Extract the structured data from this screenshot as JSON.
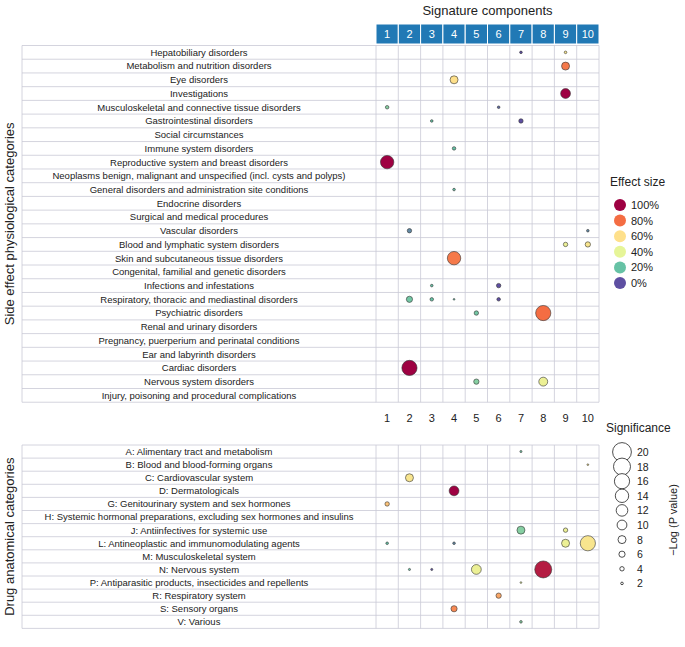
{
  "chart_data": {
    "type": "bubble_matrix",
    "title": "Signature components",
    "columns": [
      1,
      2,
      3,
      4,
      5,
      6,
      7,
      8,
      9,
      10
    ],
    "panels": [
      {
        "y_label": "Side effect physiological categories",
        "rows": [
          {
            "label": "Hepatobiliary disorders",
            "points": [
              {
                "component": 7,
                "effect": 0,
                "significance": 2
              },
              {
                "component": 9,
                "effect": 55,
                "significance": 2
              }
            ]
          },
          {
            "label": "Metabolism and nutrition disorders",
            "points": [
              {
                "component": 9,
                "effect": 78,
                "significance": 8
              }
            ]
          },
          {
            "label": "Eye disorders",
            "points": [
              {
                "component": 4,
                "effect": 60,
                "significance": 8
              }
            ]
          },
          {
            "label": "Investigations",
            "points": [
              {
                "component": 9,
                "effect": 100,
                "significance": 10
              }
            ]
          },
          {
            "label": "Musculoskeletal and connective tissue disorders",
            "points": [
              {
                "component": 1,
                "effect": 25,
                "significance": 3
              },
              {
                "component": 6,
                "effect": 5,
                "significance": 2
              }
            ]
          },
          {
            "label": "Gastrointestinal disorders",
            "points": [
              {
                "component": 3,
                "effect": 20,
                "significance": 2
              },
              {
                "component": 7,
                "effect": 0,
                "significance": 4
              }
            ]
          },
          {
            "label": "Social circumstances",
            "points": []
          },
          {
            "label": "Immune system disorders",
            "points": [
              {
                "component": 4,
                "effect": 20,
                "significance": 3
              }
            ]
          },
          {
            "label": "Reproductive system and breast disorders",
            "points": [
              {
                "component": 1,
                "effect": 100,
                "significance": 14
              }
            ]
          },
          {
            "label": "Neoplasms benign, malignant and unspecified (incl. cysts and polyps)",
            "points": []
          },
          {
            "label": "General disorders and administration site conditions",
            "points": [
              {
                "component": 4,
                "effect": 20,
                "significance": 2
              }
            ]
          },
          {
            "label": "Endocrine disorders",
            "points": []
          },
          {
            "label": "Surgical and medical procedures",
            "points": []
          },
          {
            "label": "Vascular disorders",
            "points": [
              {
                "component": 2,
                "effect": 10,
                "significance": 4
              },
              {
                "component": 10,
                "effect": 10,
                "significance": 2
              }
            ]
          },
          {
            "label": "Blood and lymphatic system disorders",
            "points": [
              {
                "component": 9,
                "effect": 45,
                "significance": 4
              },
              {
                "component": 10,
                "effect": 55,
                "significance": 5
              }
            ]
          },
          {
            "label": "Skin and subcutaneous tissue disorders",
            "points": [
              {
                "component": 4,
                "effect": 78,
                "significance": 14
              }
            ]
          },
          {
            "label": "Congenital, familial and genetic disorders",
            "points": []
          },
          {
            "label": "Infections and infestations",
            "points": [
              {
                "component": 3,
                "effect": 20,
                "significance": 2
              },
              {
                "component": 6,
                "effect": 0,
                "significance": 4
              }
            ]
          },
          {
            "label": "Respiratory, thoracic and mediastinal disorders",
            "points": [
              {
                "component": 2,
                "effect": 22,
                "significance": 6
              },
              {
                "component": 3,
                "effect": 20,
                "significance": 3
              },
              {
                "component": 4,
                "effect": 20,
                "significance": 1
              },
              {
                "component": 6,
                "effect": 0,
                "significance": 3
              }
            ]
          },
          {
            "label": "Psychiatric disorders",
            "points": [
              {
                "component": 5,
                "effect": 22,
                "significance": 4
              },
              {
                "component": 8,
                "effect": 80,
                "significance": 16
              }
            ]
          },
          {
            "label": "Renal and urinary disorders",
            "points": []
          },
          {
            "label": "Pregnancy, puerperium and perinatal conditions",
            "points": []
          },
          {
            "label": "Ear and labyrinth disorders",
            "points": []
          },
          {
            "label": "Cardiac disorders",
            "points": [
              {
                "component": 2,
                "effect": 100,
                "significance": 16
              }
            ]
          },
          {
            "label": "Nervous system disorders",
            "points": [
              {
                "component": 5,
                "effect": 25,
                "significance": 5
              },
              {
                "component": 8,
                "effect": 45,
                "significance": 9
              }
            ]
          },
          {
            "label": "Injury, poisoning and procedural complications",
            "points": []
          }
        ]
      },
      {
        "y_label": "Drug anatomical categories",
        "rows": [
          {
            "label": "A: Alimentary tract and metabolism",
            "points": [
              {
                "component": 7,
                "effect": 22,
                "significance": 1.5
              }
            ]
          },
          {
            "label": "B: Blood and blood-forming organs",
            "points": [
              {
                "component": 10,
                "effect": 55,
                "significance": 1
              }
            ]
          },
          {
            "label": "C: Cardiovascular system",
            "points": [
              {
                "component": 2,
                "effect": 55,
                "significance": 8
              }
            ]
          },
          {
            "label": "D: Dermatologicals",
            "points": [
              {
                "component": 4,
                "effect": 100,
                "significance": 10
              }
            ]
          },
          {
            "label": "G: Genitourinary system and sex hormones",
            "points": [
              {
                "component": 1,
                "effect": 65,
                "significance": 4
              }
            ]
          },
          {
            "label": "H: Systemic hormonal preparations, excluding sex hormones and insulins",
            "points": []
          },
          {
            "label": "J: Antiinfectives for systemic use",
            "points": [
              {
                "component": 7,
                "effect": 25,
                "significance": 8
              },
              {
                "component": 9,
                "effect": 45,
                "significance": 4
              }
            ]
          },
          {
            "label": "L: Antineoplastic and immunomodulating agents",
            "points": [
              {
                "component": 1,
                "effect": 20,
                "significance": 2
              },
              {
                "component": 4,
                "effect": 10,
                "significance": 2
              },
              {
                "component": 9,
                "effect": 45,
                "significance": 8
              },
              {
                "component": 10,
                "effect": 55,
                "significance": 16
              }
            ]
          },
          {
            "label": "M: Musculoskeletal system",
            "points": []
          },
          {
            "label": "N: Nervous system",
            "points": [
              {
                "component": 2,
                "effect": 20,
                "significance": 1.5
              },
              {
                "component": 3,
                "effect": 0,
                "significance": 1.5
              },
              {
                "component": 5,
                "effect": 45,
                "significance": 10
              },
              {
                "component": 8,
                "effect": 95,
                "significance": 18
              }
            ]
          },
          {
            "label": "P: Antiparasitic products, insecticides and repellents",
            "points": [
              {
                "component": 7,
                "effect": 40,
                "significance": 1
              }
            ]
          },
          {
            "label": "R: Respiratory system",
            "points": [
              {
                "component": 6,
                "effect": 70,
                "significance": 5
              }
            ]
          },
          {
            "label": "S: Sensory organs",
            "points": [
              {
                "component": 4,
                "effect": 75,
                "significance": 6
              }
            ]
          },
          {
            "label": "V: Various",
            "points": [
              {
                "component": 7,
                "effect": 25,
                "significance": 2
              }
            ]
          }
        ]
      }
    ],
    "color_legend": {
      "title": "Effect size",
      "stops": [
        {
          "value": 100,
          "label": "100%",
          "color": "#9e0142"
        },
        {
          "value": 80,
          "label": "80%",
          "color": "#f46d43"
        },
        {
          "value": 60,
          "label": "60%",
          "color": "#fee08b"
        },
        {
          "value": 40,
          "label": "40%",
          "color": "#e6f598"
        },
        {
          "value": 20,
          "label": "20%",
          "color": "#66c2a5"
        },
        {
          "value": 0,
          "label": "0%",
          "color": "#5e4fa2"
        }
      ]
    },
    "size_legend": {
      "title": "Significance",
      "label": "−Log (P value)",
      "values": [
        20,
        18,
        16,
        14,
        12,
        10,
        8,
        6,
        4,
        2
      ]
    }
  }
}
